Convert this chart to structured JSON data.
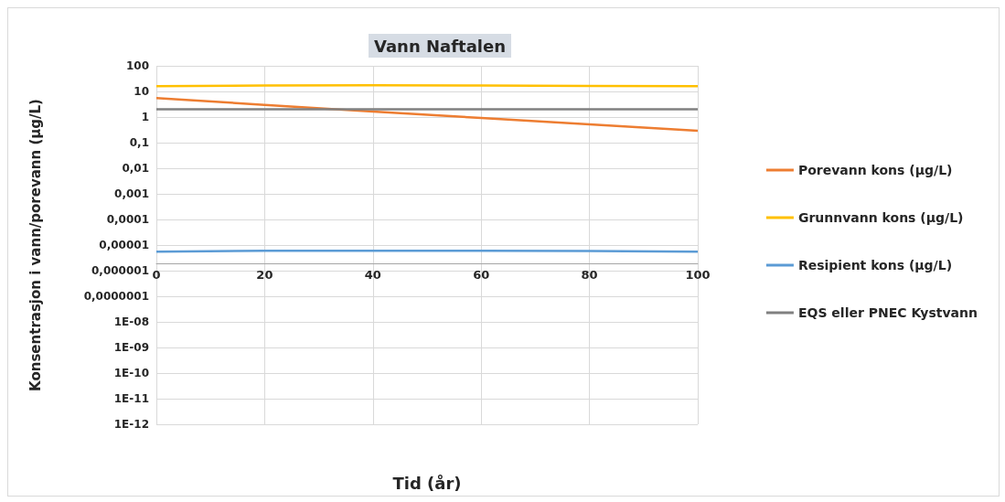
{
  "chart_data": {
    "type": "line",
    "title": "Vann Naftalen",
    "xlabel": "Tid (år)",
    "ylabel": "Konsentrasjon i vann/porevann (µg/L)",
    "x": [
      0,
      20,
      40,
      60,
      80,
      100
    ],
    "series": [
      {
        "name": "Porevann kons (µg/L)",
        "color": "#ed7d31",
        "values": [
          5.5,
          3,
          1.65,
          0.92,
          0.52,
          0.29
        ]
      },
      {
        "name": "Grunnvann kons (µg/L)",
        "color": "#ffc000",
        "values": [
          16,
          17,
          17.5,
          17,
          16.5,
          16
        ]
      },
      {
        "name": "Resipient kons (µg/L)",
        "color": "#5b9bd5",
        "values": [
          5.5e-06,
          6e-06,
          6e-06,
          6e-06,
          5.8e-06,
          5.5e-06
        ]
      },
      {
        "name": "EQS eller PNEC Kystvann",
        "color": "#808080",
        "values": [
          2,
          2,
          2,
          2,
          2,
          2
        ]
      }
    ],
    "xlim": [
      0,
      100
    ],
    "xticks": [
      0,
      20,
      40,
      60,
      80,
      100
    ],
    "ylim": [
      1e-12,
      100
    ],
    "yticks": [
      100,
      10,
      1,
      {
        "value": 0.1,
        "label": "0,1"
      },
      {
        "value": 0.01,
        "label": "0,01"
      },
      {
        "value": 0.001,
        "label": "0,001"
      },
      {
        "value": 0.0001,
        "label": "0,0001"
      },
      {
        "value": 1e-05,
        "label": "0,00001"
      },
      {
        "value": 1e-06,
        "label": "0,000001"
      },
      {
        "value": 1e-07,
        "label": "0,0000001"
      },
      {
        "value": 1e-08,
        "label": "1E-08"
      },
      {
        "value": 1e-09,
        "label": "1E-09"
      },
      {
        "value": 1e-10,
        "label": "1E-10"
      },
      {
        "value": 1e-11,
        "label": "1E-11"
      },
      {
        "value": 1e-12,
        "label": "1E-12"
      }
    ],
    "log": "y",
    "grid": true,
    "legend": "right",
    "marker": "none",
    "line_style": "solid"
  }
}
